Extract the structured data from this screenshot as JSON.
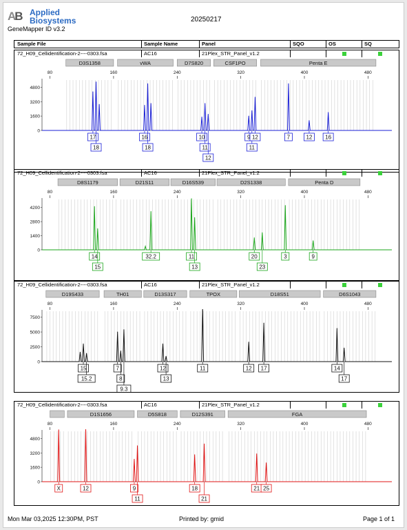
{
  "header": {
    "logo_text_line1": "Applied",
    "logo_text_line2": "Biosystems",
    "logo_mark": "AB",
    "run_date": "20250217",
    "app_name": "GeneMapper ID v3.2",
    "col_sample_file": "Sample File",
    "col_sample_name": "Sample Name",
    "col_panel": "Panel",
    "col_sqo": "SQO",
    "col_os": "OS",
    "col_sq": "SQ",
    "status_color": "#3bd23b"
  },
  "footer": {
    "datetime": "Mon Mar 03,2025 12:30PM, PST",
    "printed_by": "Printed by: gmid",
    "page": "Page 1 of 1"
  },
  "chart_data": [
    {
      "type": "line",
      "sample_file": "72_H09_Cellidentification-2----0303.fsa",
      "sample_name": "AC16",
      "panel": "21Plex_STR_Panel_v1.2",
      "color": "#1a1fd6",
      "x_ticks": [
        80,
        160,
        240,
        320,
        400,
        480
      ],
      "xlim": [
        70,
        510
      ],
      "y_ticks": [
        0,
        1600,
        3200,
        4800
      ],
      "ylim": [
        0,
        5600
      ],
      "loci": [
        {
          "name": "D3S1358",
          "range": [
            100,
            160
          ]
        },
        {
          "name": "vWA",
          "range": [
            165,
            235
          ]
        },
        {
          "name": "D7S820",
          "range": [
            240,
            282
          ]
        },
        {
          "name": "CSF1PO",
          "range": [
            286,
            340
          ]
        },
        {
          "name": "Penta E",
          "range": [
            345,
            490
          ]
        }
      ],
      "peaks": [
        {
          "x": 134,
          "y": 4300,
          "label": "17",
          "label_row": 1
        },
        {
          "x": 138,
          "y": 5400,
          "label": "18",
          "label_row": 2
        },
        {
          "x": 142,
          "y": 2900
        },
        {
          "x": 199,
          "y": 2800,
          "label": "16",
          "label_row": 1
        },
        {
          "x": 203,
          "y": 5200,
          "label": "18",
          "label_row": 2
        },
        {
          "x": 207,
          "y": 3000
        },
        {
          "x": 271,
          "y": 1500,
          "label": "10",
          "label_row": 1
        },
        {
          "x": 275,
          "y": 3000,
          "label": "11",
          "label_row": 2
        },
        {
          "x": 279,
          "y": 1800,
          "label": "12",
          "label_row": 3
        },
        {
          "x": 330,
          "y": 1600,
          "label": "9",
          "label_row": 1
        },
        {
          "x": 334,
          "y": 2200,
          "label": "11",
          "label_row": 2
        },
        {
          "x": 338,
          "y": 3700,
          "label": "12",
          "label_row": 1
        },
        {
          "x": 380,
          "y": 5200,
          "label": "7",
          "label_row": 1
        },
        {
          "x": 406,
          "y": 1100,
          "label": "12",
          "label_row": 1
        },
        {
          "x": 430,
          "y": 2000,
          "label": "16",
          "label_row": 1
        }
      ]
    },
    {
      "type": "line",
      "sample_file": "72_H09_Cellidentification-2----0303.fsa",
      "sample_name": "AC16",
      "panel": "21Plex_STR_Panel_v1.2",
      "color": "#1aa61a",
      "x_ticks": [
        80,
        160,
        240,
        320,
        400,
        480
      ],
      "xlim": [
        70,
        510
      ],
      "y_ticks": [
        0,
        1400,
        2800,
        4200
      ],
      "ylim": [
        0,
        5000
      ],
      "loci": [
        {
          "name": "D8S1179",
          "range": [
            90,
            165
          ]
        },
        {
          "name": "D21S11",
          "range": [
            168,
            230
          ]
        },
        {
          "name": "D16S539",
          "range": [
            232,
            288
          ]
        },
        {
          "name": "D2S1338",
          "range": [
            290,
            376
          ]
        },
        {
          "name": "Penta D",
          "range": [
            380,
            470
          ]
        }
      ],
      "peaks": [
        {
          "x": 136,
          "y": 4300,
          "label": "14",
          "label_row": 1
        },
        {
          "x": 140,
          "y": 2100,
          "label": "15",
          "label_row": 2
        },
        {
          "x": 200,
          "y": 350
        },
        {
          "x": 207,
          "y": 3800,
          "label": "32.2",
          "label_row": 1
        },
        {
          "x": 258,
          "y": 5100,
          "label": "11",
          "label_row": 1
        },
        {
          "x": 262,
          "y": 3200,
          "label": "13",
          "label_row": 2
        },
        {
          "x": 337,
          "y": 1200,
          "label": "20",
          "label_row": 1
        },
        {
          "x": 347,
          "y": 1700,
          "label": "23",
          "label_row": 2
        },
        {
          "x": 376,
          "y": 4400,
          "label": "3",
          "label_row": 1
        },
        {
          "x": 411,
          "y": 900,
          "label": "9",
          "label_row": 1
        }
      ]
    },
    {
      "type": "line",
      "sample_file": "72_H09_Cellidentification-2----0303.fsa",
      "sample_name": "AC16",
      "panel": "21Plex_STR_Panel_v1.2",
      "color": "#111111",
      "x_ticks": [
        80,
        160,
        240,
        320,
        400,
        480
      ],
      "xlim": [
        70,
        510
      ],
      "y_ticks": [
        0,
        2500,
        5000,
        7500
      ],
      "ylim": [
        0,
        8500
      ],
      "loci": [
        {
          "name": "D19S433",
          "range": [
            75,
            142
          ]
        },
        {
          "name": "TH01",
          "range": [
            148,
            195
          ]
        },
        {
          "name": "D13S317",
          "range": [
            198,
            252
          ]
        },
        {
          "name": "TPOX",
          "range": [
            256,
            315
          ]
        },
        {
          "name": "D18S51",
          "range": [
            318,
            420
          ]
        },
        {
          "name": "D6S1043",
          "range": [
            424,
            490
          ]
        }
      ],
      "peaks": [
        {
          "x": 118,
          "y": 1600
        },
        {
          "x": 122,
          "y": 3000,
          "label": "15",
          "label_row": 1
        },
        {
          "x": 126,
          "y": 1400,
          "label": "15.2",
          "label_row": 2
        },
        {
          "x": 165,
          "y": 5000,
          "label": "7",
          "label_row": 1
        },
        {
          "x": 169,
          "y": 1800,
          "label": "8",
          "label_row": 2
        },
        {
          "x": 173,
          "y": 5400,
          "label": "9.3",
          "label_row": 3
        },
        {
          "x": 222,
          "y": 3000,
          "label": "12",
          "label_row": 1
        },
        {
          "x": 226,
          "y": 900,
          "label": "13",
          "label_row": 2
        },
        {
          "x": 272,
          "y": 9200,
          "label": "11",
          "label_row": 1
        },
        {
          "x": 330,
          "y": 3300,
          "label": "12",
          "label_row": 1
        },
        {
          "x": 349,
          "y": 6500,
          "label": "17",
          "label_row": 1
        },
        {
          "x": 441,
          "y": 5600,
          "label": "14",
          "label_row": 1
        },
        {
          "x": 450,
          "y": 2300,
          "label": "17",
          "label_row": 2
        }
      ]
    },
    {
      "type": "line",
      "sample_file": "72_H09_Cellidentification-2----0303.fsa",
      "sample_name": "AC16",
      "panel": "21Plex_STR_Panel_v1.2",
      "color": "#e01414",
      "x_ticks": [
        80,
        160,
        240,
        320,
        400,
        480
      ],
      "xlim": [
        70,
        510
      ],
      "y_ticks": [
        0,
        1600,
        3200,
        4800
      ],
      "ylim": [
        0,
        5600
      ],
      "loci": [
        {
          "name": "",
          "range": [
            80,
            98
          ]
        },
        {
          "name": "D1S1656",
          "range": [
            102,
            186
          ]
        },
        {
          "name": "D5S818",
          "range": [
            190,
            240
          ]
        },
        {
          "name": "D12S391",
          "range": [
            244,
            300
          ]
        },
        {
          "name": "FGA",
          "range": [
            304,
            478
          ]
        }
      ],
      "peaks": [
        {
          "x": 91,
          "y": 5800,
          "label": "X",
          "label_row": 1
        },
        {
          "x": 125,
          "y": 5900,
          "label": "12",
          "label_row": 1
        },
        {
          "x": 186,
          "y": 2500,
          "label": "9",
          "label_row": 1
        },
        {
          "x": 190,
          "y": 4000,
          "label": "11",
          "label_row": 2
        },
        {
          "x": 262,
          "y": 3000,
          "label": "18",
          "label_row": 1
        },
        {
          "x": 274,
          "y": 4200,
          "label": "21",
          "label_row": 2
        },
        {
          "x": 340,
          "y": 3100,
          "label": "21",
          "label_row": 1
        },
        {
          "x": 352,
          "y": 2100,
          "label": "25",
          "label_row": 1
        }
      ]
    }
  ]
}
